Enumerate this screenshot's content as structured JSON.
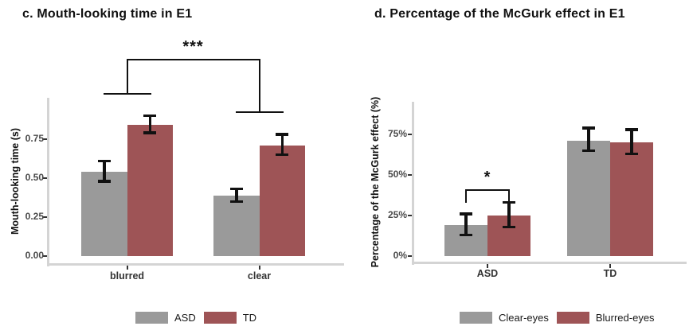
{
  "colors": {
    "bar_gray": "#9a9a9a",
    "bar_red": "#9e5456",
    "axis_line": "#d4d4d4",
    "error_bar": "#111111",
    "significance": "#111111",
    "tick_text": "#4a4a4a"
  },
  "chart_data": [
    {
      "type": "bar",
      "title": "c. Mouth-looking time in E1",
      "xlabel": "",
      "ylabel": "Mouth-looking time (s)",
      "categories": [
        "blurred",
        "clear"
      ],
      "series": [
        {
          "name": "ASD",
          "color": "#9a9a9a",
          "values": [
            0.54,
            0.39
          ],
          "err_low": [
            0.48,
            0.35
          ],
          "err_high": [
            0.61,
            0.43
          ]
        },
        {
          "name": "TD",
          "color": "#9e5456",
          "values": [
            0.84,
            0.71
          ],
          "err_low": [
            0.79,
            0.65
          ],
          "err_high": [
            0.9,
            0.78
          ]
        }
      ],
      "yticks": [
        {
          "value": 0,
          "label": "0.00"
        },
        {
          "value": 0.25,
          "label": "0.25"
        },
        {
          "value": 0.5,
          "label": "0.50"
        },
        {
          "value": 0.75,
          "label": "0.75"
        }
      ],
      "ylim": [
        0,
        1.0
      ],
      "grid": false,
      "legend_position": "bottom",
      "significance": [
        {
          "label": "***",
          "type": "between_categories",
          "from_category": "blurred",
          "to_category": "clear"
        }
      ]
    },
    {
      "type": "bar",
      "title": "d. Percentage of the McGurk effect in E1",
      "xlabel": "",
      "ylabel": "Percentage of the McGurk effect (%)",
      "categories": [
        "ASD",
        "TD"
      ],
      "series": [
        {
          "name": "Clear-eyes",
          "color": "#9a9a9a",
          "values": [
            19,
            71
          ],
          "err_low": [
            13,
            65
          ],
          "err_high": [
            26,
            79
          ]
        },
        {
          "name": "Blurred-eyes",
          "color": "#9e5456",
          "values": [
            25,
            70
          ],
          "err_low": [
            18,
            63
          ],
          "err_high": [
            33,
            78
          ]
        }
      ],
      "yticks": [
        {
          "value": 0,
          "label": "0%"
        },
        {
          "value": 25,
          "label": "25%"
        },
        {
          "value": 50,
          "label": "50%"
        },
        {
          "value": 75,
          "label": "75%"
        }
      ],
      "ylim": [
        0,
        94
      ],
      "grid": false,
      "legend_position": "bottom",
      "significance": [
        {
          "label": "*",
          "type": "within_category",
          "category": "ASD",
          "from_series": "Clear-eyes",
          "to_series": "Blurred-eyes"
        }
      ]
    }
  ]
}
